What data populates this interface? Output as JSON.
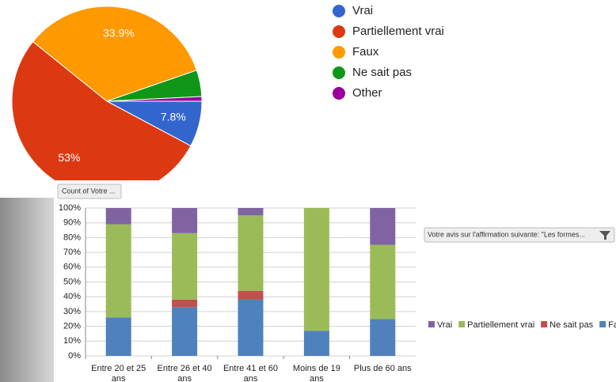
{
  "chart_data": [
    {
      "type": "pie",
      "categories": [
        "Vrai",
        "Partiellement vrai",
        "Faux",
        "Ne sait pas",
        "Other"
      ],
      "values": [
        7.8,
        53,
        33.9,
        4.5,
        0.8
      ],
      "value_labels": [
        "7.8%",
        "53%",
        "33.9%",
        null,
        null
      ],
      "colors": [
        "#3366cc",
        "#dc3912",
        "#ff9900",
        "#109618",
        "#990099"
      ]
    },
    {
      "type": "stacked_bar",
      "categories": [
        "Entre 20 et 25 ans",
        "Entre 26 et 40 ans",
        "Entre 41 et 60 ans",
        "Moins de 19 ans",
        "Plus de 60 ans"
      ],
      "series": [
        {
          "name": "Vrai",
          "color": "#8064a2",
          "values": [
            11,
            17,
            5,
            0,
            25
          ]
        },
        {
          "name": "Partiellement vrai",
          "color": "#9bbb59",
          "values": [
            63,
            45,
            51,
            83,
            50
          ]
        },
        {
          "name": "Ne sait pas",
          "color": "#c0504d",
          "values": [
            0,
            5,
            6,
            0,
            0
          ]
        },
        {
          "name": "Faux",
          "color": "#4f81bd",
          "values": [
            26,
            33,
            38,
            17,
            25
          ]
        }
      ],
      "ylim": [
        0,
        100
      ],
      "yticks": [
        {
          "value": 0,
          "label": "0%"
        },
        {
          "value": 10,
          "label": "10%"
        },
        {
          "value": 20,
          "label": "20%"
        },
        {
          "value": 30,
          "label": "30%"
        },
        {
          "value": 40,
          "label": "40%"
        },
        {
          "value": 50,
          "label": "50%"
        },
        {
          "value": 60,
          "label": "60%"
        },
        {
          "value": 70,
          "label": "70%"
        },
        {
          "value": 80,
          "label": "80%"
        },
        {
          "value": 90,
          "label": "90%"
        },
        {
          "value": 100,
          "label": "100%"
        }
      ],
      "grid": true,
      "field_buttons": [
        "Count of Votre ...",
        "Votre avis sur l'affirmation suivante: \"Les formes..."
      ]
    }
  ]
}
